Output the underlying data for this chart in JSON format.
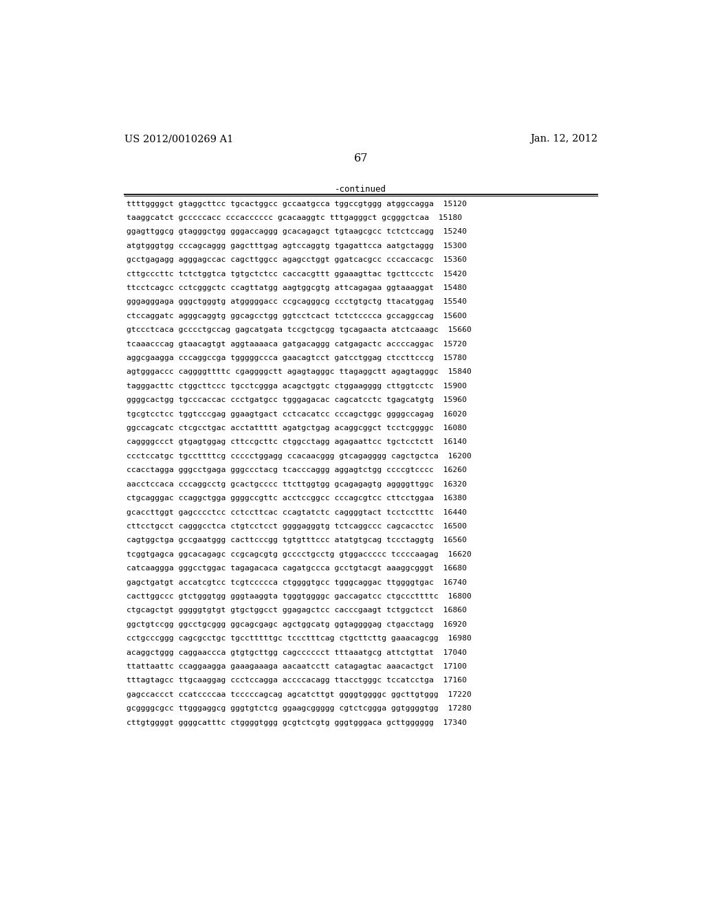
{
  "header_left": "US 2012/0010269 A1",
  "header_right": "Jan. 12, 2012",
  "page_number": "67",
  "continued_label": "-continued",
  "background_color": "#ffffff",
  "text_color": "#000000",
  "font_size_header": 10.5,
  "font_size_page": 11.5,
  "font_size_body": 8.2,
  "font_size_continued": 9.0,
  "sequence_lines": [
    "ttttggggct gtaggcttcc tgcactggcc gccaatgcca tggccgtggg atggccagga  15120",
    "taaggcatct gcccccacc cccacccccc gcacaaggtc tttgagggct gcgggctcaa  15180",
    "ggagttggcg gtagggctgg gggaccaggg gcacagagct tgtaagcgcc tctctccagg  15240",
    "atgtgggtgg cccagcaggg gagctttgag agtccaggtg tgagattcca aatgctaggg  15300",
    "gcctgagagg agggagccac cagcttggcc agagcctggt ggatcacgcc cccaccacgc  15360",
    "cttgcccttc tctctggtca tgtgctctcc caccacgttt ggaaagttac tgcttccctc  15420",
    "ttcctcagcc cctcgggctc ccagttatgg aagtggcgtg attcagagaa ggtaaaggat  15480",
    "gggagggaga gggctgggtg atgggggacc ccgcagggcg ccctgtgctg ttacatggag  15540",
    "ctccaggatc agggcaggtg ggcagcctgg ggtcctcact tctctcccca gccaggccag  15600",
    "gtccctcaca gcccctgccag gagcatgata tccgctgcgg tgcagaacta atctcaaagc  15660",
    "tcaaacccag gtaacagtgt aggtaaaaca gatgacaggg catgagactc accccaggac  15720",
    "aggcgaagga cccaggccga tgggggccca gaacagtcct gatcctggag ctccttcccg  15780",
    "agtgggaccc caggggttttc cgaggggctt agagtagggc ttagaggctt agagtagggc  15840",
    "tagggacttc ctggcttccc tgcctcggga acagctggtc ctggaagggg cttggtcctc  15900",
    "ggggcactgg tgcccaccac ccctgatgcc tgggagacac cagcatcctc tgagcatgtg  15960",
    "tgcgtcctcc tggtcccgag ggaagtgact cctcacatcc cccagctggc ggggccagag  16020",
    "ggccagcatc ctcgcctgac acctattttt agatgctgag acaggcggct tcctcggggc  16080",
    "caggggccct gtgagtggag cttccgcttc ctggcctagg agagaattcc tgctcctctt  16140",
    "ccctccatgc tgccttttcg ccccctggagg ccacaacggg gtcagagggg cagctgctca  16200",
    "ccacctagga gggcctgaga gggccctacg tcacccaggg aggagtctgg ccccgtcccc  16260",
    "aacctccaca cccaggcctg gcactgcccc ttcttggtgg gcagagagtg aggggttggc  16320",
    "ctgcagggac ccaggctgga ggggccgttc acctccggcc cccagcgtcc cttcctggaa  16380",
    "gcaccttggt gagcccctcc cctccttcac ccagtatctc caggggtact tcctcctttc  16440",
    "cttcctgcct cagggcctca ctgtcctcct ggggagggtg tctcaggccc cagcacctcc  16500",
    "cagtggctga gccgaatggg cacttcccgg tgtgtttccc atatgtgcag tccctaggtg  16560",
    "tcggtgagca ggcacagagc ccgcagcgtg gcccctgcctg gtggaccccc tccccaagag  16620",
    "catcaaggga gggcctggac tagagacaca cagatgccca gcctgtacgt aaaggcgggt  16680",
    "gagctgatgt accatcgtcc tcgtccccca ctggggtgcc tgggcaggac ttggggtgac  16740",
    "cacttggccc gtctgggtgg gggtaaggta tgggtggggc gaccagatcc ctgcccttttc  16800",
    "ctgcagctgt gggggtgtgt gtgctggcct ggagagctcc cacccgaagt tctggctcct  16860",
    "ggctgtccgg ggcctgcggg ggcagcgagc agctggcatg ggtaggggag ctgacctagg  16920",
    "cctgcccggg cagcgcctgc tgcctttttgc tccctttcag ctgcttcttg gaaacagcgg  16980",
    "acaggctggg caggaaccca gtgtgcttgg cagcccccct tttaaatgcg attctgttat  17040",
    "ttattaattc ccaggaagga gaaagaaaga aacaatcctt catagagtac aaacactgct  17100",
    "tttagtagcc ttgcaaggag ccctccagga accccacagg ttacctgggc tccatcctga  17160",
    "gagccaccct ccatccccaa tcccccagcag agcatcttgt ggggtggggc ggcttgtggg  17220",
    "gcggggcgcc ttgggaggcg gggtgtctcg ggaagcggggg cgtctcggga ggtggggtgg  17280",
    "cttgtggggt ggggcatttc ctggggtggg gcgtctcgtg gggtgggaca gcttgggggg  17340"
  ]
}
